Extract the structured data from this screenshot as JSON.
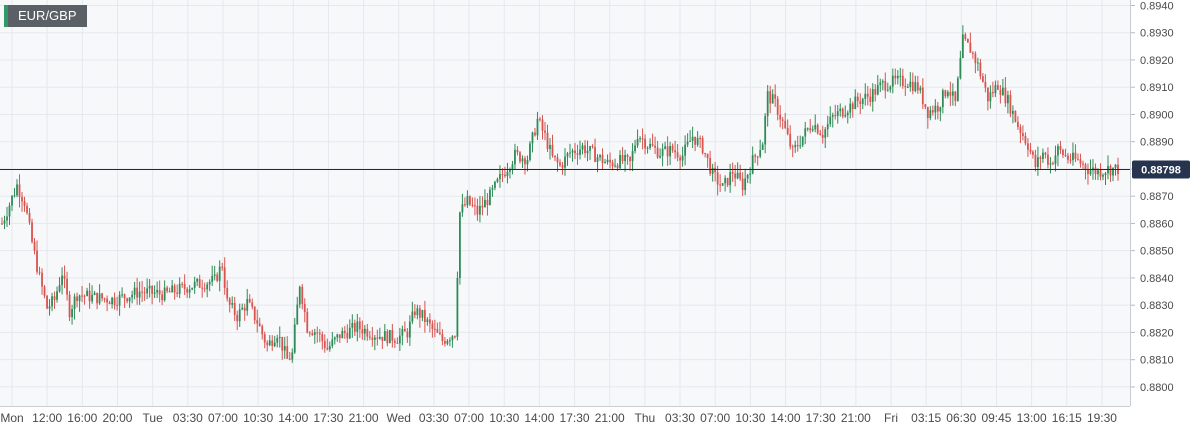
{
  "symbol": "EUR/GBP",
  "colors": {
    "up": "#2e8b57",
    "down": "#d9534f",
    "grid": "#e6e8ee",
    "price_line": "#1c2a4a",
    "price_label_bg": "#26344f",
    "axis_text": "#4a4a4a",
    "plot_bg": "#f7f8fa"
  },
  "chart_data": {
    "type": "candlestick",
    "title": "EUR/GBP",
    "xlabel": "",
    "ylabel": "",
    "ylim": [
      0.8793,
      0.8942
    ],
    "yticks": [
      "0.8940",
      "0.8930",
      "0.8920",
      "0.8910",
      "0.8900",
      "0.8890",
      "0.8880",
      "0.8870",
      "0.8860",
      "0.8850",
      "0.8840",
      "0.8830",
      "0.8820",
      "0.8810",
      "0.8800"
    ],
    "ytick_values": [
      0.894,
      0.893,
      0.892,
      0.891,
      0.89,
      0.889,
      0.888,
      0.887,
      0.886,
      0.885,
      0.884,
      0.883,
      0.882,
      0.881,
      0.88
    ],
    "xticks": [
      "Mon",
      "12:00",
      "16:00",
      "20:00",
      "Tue",
      "03:30",
      "07:00",
      "10:30",
      "14:00",
      "17:30",
      "21:00",
      "Wed",
      "03:30",
      "07:00",
      "10:30",
      "14:00",
      "17:30",
      "21:00",
      "Thu",
      "03:30",
      "07:00",
      "10:30",
      "14:00",
      "17:30",
      "21:00",
      "Fri",
      "03:15",
      "06:30",
      "09:45",
      "13:00",
      "16:15",
      "19:30"
    ],
    "current_price": 0.88798,
    "current_price_label": "0.88798",
    "grid": true,
    "anchors": [
      {
        "i": 0,
        "v": 0.886
      },
      {
        "i": 3,
        "v": 0.8867
      },
      {
        "i": 6,
        "v": 0.8874
      },
      {
        "i": 9,
        "v": 0.8868
      },
      {
        "i": 12,
        "v": 0.8853
      },
      {
        "i": 15,
        "v": 0.884
      },
      {
        "i": 18,
        "v": 0.8829
      },
      {
        "i": 21,
        "v": 0.8832
      },
      {
        "i": 24,
        "v": 0.8842
      },
      {
        "i": 27,
        "v": 0.8828
      },
      {
        "i": 30,
        "v": 0.8834
      },
      {
        "i": 36,
        "v": 0.8833
      },
      {
        "i": 45,
        "v": 0.8832
      },
      {
        "i": 55,
        "v": 0.8835
      },
      {
        "i": 65,
        "v": 0.8834
      },
      {
        "i": 75,
        "v": 0.8837
      },
      {
        "i": 85,
        "v": 0.8839
      },
      {
        "i": 88,
        "v": 0.8845
      },
      {
        "i": 90,
        "v": 0.8831
      },
      {
        "i": 94,
        "v": 0.8826
      },
      {
        "i": 98,
        "v": 0.8831
      },
      {
        "i": 102,
        "v": 0.8824
      },
      {
        "i": 106,
        "v": 0.8815
      },
      {
        "i": 110,
        "v": 0.882
      },
      {
        "i": 114,
        "v": 0.881
      },
      {
        "i": 116,
        "v": 0.8812
      },
      {
        "i": 119,
        "v": 0.8838
      },
      {
        "i": 122,
        "v": 0.8822
      },
      {
        "i": 126,
        "v": 0.882
      },
      {
        "i": 130,
        "v": 0.8814
      },
      {
        "i": 135,
        "v": 0.8819
      },
      {
        "i": 142,
        "v": 0.8822
      },
      {
        "i": 150,
        "v": 0.8819
      },
      {
        "i": 158,
        "v": 0.8818
      },
      {
        "i": 162,
        "v": 0.882
      },
      {
        "i": 165,
        "v": 0.8828
      },
      {
        "i": 168,
        "v": 0.8826
      },
      {
        "i": 172,
        "v": 0.8821
      },
      {
        "i": 176,
        "v": 0.8817
      },
      {
        "i": 181,
        "v": 0.882
      },
      {
        "i": 183,
        "v": 0.8864
      },
      {
        "i": 186,
        "v": 0.8868
      },
      {
        "i": 190,
        "v": 0.8864
      },
      {
        "i": 195,
        "v": 0.887
      },
      {
        "i": 200,
        "v": 0.8878
      },
      {
        "i": 205,
        "v": 0.8885
      },
      {
        "i": 210,
        "v": 0.8884
      },
      {
        "i": 214,
        "v": 0.8898
      },
      {
        "i": 217,
        "v": 0.8892
      },
      {
        "i": 220,
        "v": 0.8884
      },
      {
        "i": 223,
        "v": 0.8881
      },
      {
        "i": 227,
        "v": 0.8886
      },
      {
        "i": 232,
        "v": 0.8888
      },
      {
        "i": 237,
        "v": 0.8885
      },
      {
        "i": 242,
        "v": 0.8882
      },
      {
        "i": 248,
        "v": 0.8883
      },
      {
        "i": 251,
        "v": 0.8882
      },
      {
        "i": 254,
        "v": 0.8893
      },
      {
        "i": 258,
        "v": 0.8889
      },
      {
        "i": 263,
        "v": 0.8886
      },
      {
        "i": 268,
        "v": 0.8887
      },
      {
        "i": 272,
        "v": 0.8885
      },
      {
        "i": 276,
        "v": 0.8892
      },
      {
        "i": 280,
        "v": 0.8888
      },
      {
        "i": 284,
        "v": 0.8878
      },
      {
        "i": 288,
        "v": 0.8873
      },
      {
        "i": 292,
        "v": 0.8879
      },
      {
        "i": 296,
        "v": 0.8874
      },
      {
        "i": 300,
        "v": 0.8883
      },
      {
        "i": 304,
        "v": 0.889
      },
      {
        "i": 306,
        "v": 0.8907
      },
      {
        "i": 309,
        "v": 0.8904
      },
      {
        "i": 312,
        "v": 0.8897
      },
      {
        "i": 316,
        "v": 0.8886
      },
      {
        "i": 320,
        "v": 0.8892
      },
      {
        "i": 324,
        "v": 0.8897
      },
      {
        "i": 328,
        "v": 0.8893
      },
      {
        "i": 332,
        "v": 0.8899
      },
      {
        "i": 337,
        "v": 0.8902
      },
      {
        "i": 342,
        "v": 0.8905
      },
      {
        "i": 347,
        "v": 0.8907
      },
      {
        "i": 352,
        "v": 0.8911
      },
      {
        "i": 357,
        "v": 0.8912
      },
      {
        "i": 362,
        "v": 0.8912
      },
      {
        "i": 366,
        "v": 0.891
      },
      {
        "i": 370,
        "v": 0.8901
      },
      {
        "i": 374,
        "v": 0.8903
      },
      {
        "i": 378,
        "v": 0.891
      },
      {
        "i": 381,
        "v": 0.8904
      },
      {
        "i": 384,
        "v": 0.8927
      },
      {
        "i": 387,
        "v": 0.8924
      },
      {
        "i": 390,
        "v": 0.8918
      },
      {
        "i": 394,
        "v": 0.8906
      },
      {
        "i": 398,
        "v": 0.8911
      },
      {
        "i": 402,
        "v": 0.8905
      },
      {
        "i": 406,
        "v": 0.8896
      },
      {
        "i": 410,
        "v": 0.8889
      },
      {
        "i": 413,
        "v": 0.8881
      },
      {
        "i": 416,
        "v": 0.8886
      },
      {
        "i": 419,
        "v": 0.8882
      },
      {
        "i": 422,
        "v": 0.8887
      },
      {
        "i": 426,
        "v": 0.8884
      },
      {
        "i": 430,
        "v": 0.8883
      },
      {
        "i": 434,
        "v": 0.888
      },
      {
        "i": 438,
        "v": 0.8879
      },
      {
        "i": 442,
        "v": 0.888
      },
      {
        "i": 446,
        "v": 0.888
      }
    ]
  }
}
